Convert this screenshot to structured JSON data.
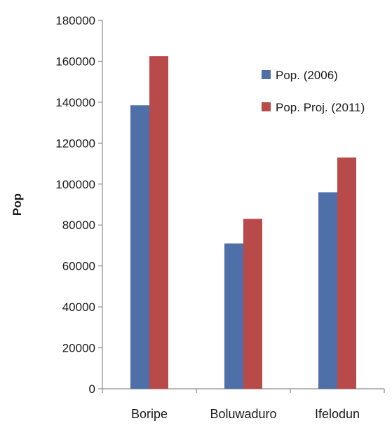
{
  "chart_data": {
    "type": "bar",
    "title": "",
    "xlabel": "",
    "ylabel": "Pop",
    "ylim": [
      0,
      180000
    ],
    "yticks": [
      0,
      20000,
      40000,
      60000,
      80000,
      100000,
      120000,
      140000,
      160000,
      180000
    ],
    "categories": [
      "Boripe",
      "Boluwaduro",
      "Ifelodun"
    ],
    "series": [
      {
        "name": "Pop. (2006)",
        "values": [
          138500,
          71000,
          96000
        ],
        "color": "#4f6fa8"
      },
      {
        "name": "Pop. Proj. (2011)",
        "values": [
          162500,
          83000,
          113000
        ],
        "color": "#b84a4a"
      }
    ],
    "grid": false,
    "legend": {
      "position": "top-right"
    }
  }
}
